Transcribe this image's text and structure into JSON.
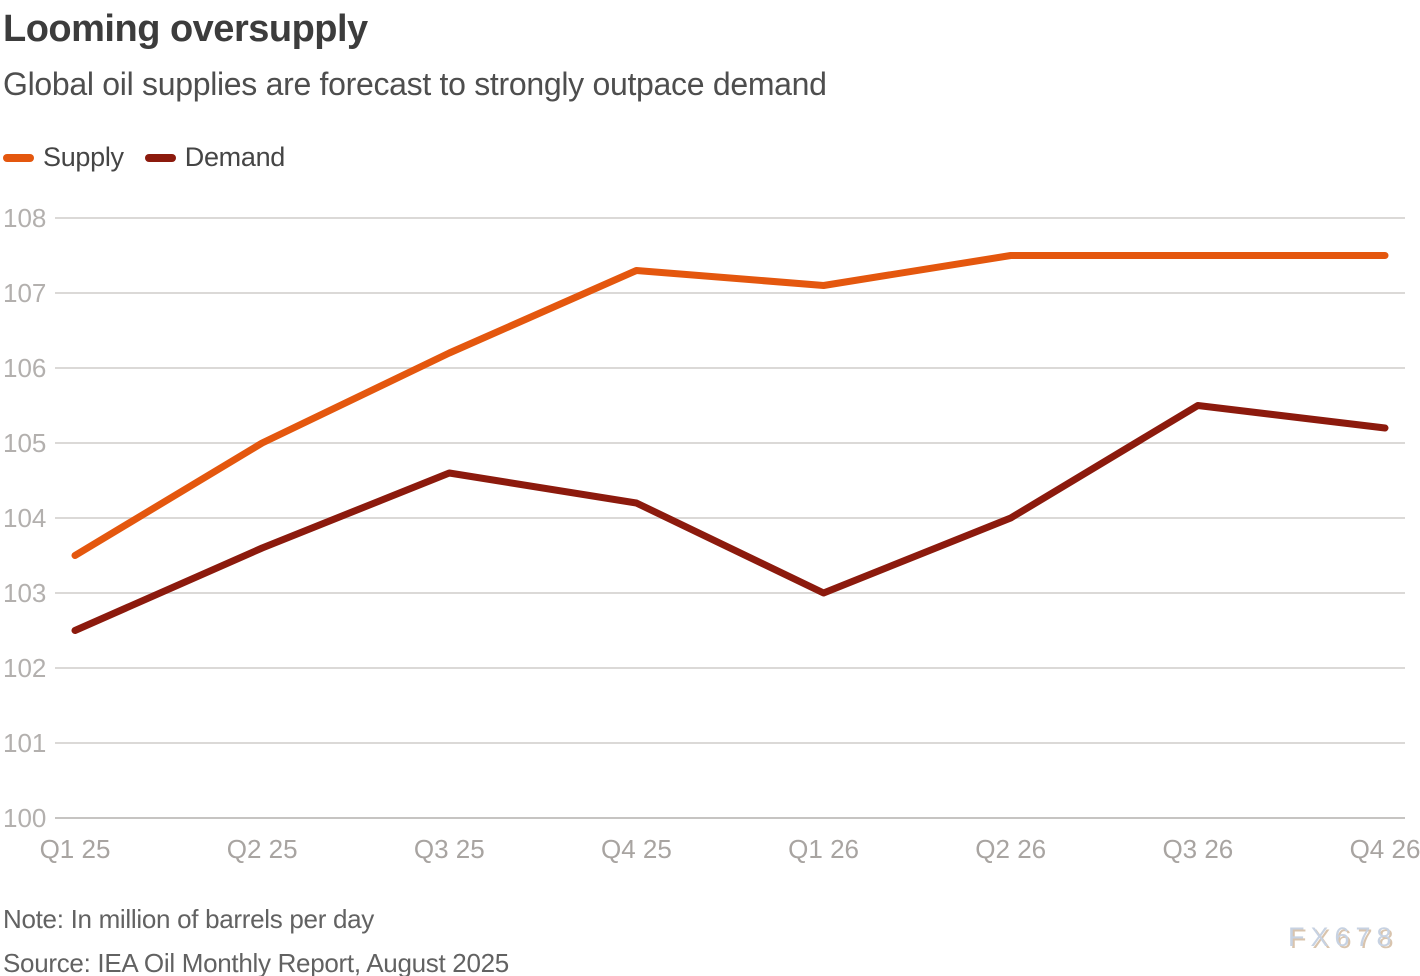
{
  "header": {
    "title": "Looming oversupply",
    "subtitle": "Global oil supplies are forecast to strongly outpace demand"
  },
  "legend": {
    "items": [
      {
        "label": "Supply",
        "color": "#e4570e"
      },
      {
        "label": "Demand",
        "color": "#8c1a0d"
      }
    ]
  },
  "footer": {
    "note": "Note: In million of barrels per day",
    "source": "Source: IEA Oil Monthly Report, August 2025",
    "watermark": "FX678"
  },
  "colors": {
    "supply": "#e4570e",
    "demand": "#8c1a0d",
    "gridline": "#dbd9d7",
    "axis_line": "#c6c4c2",
    "y_tick_label": "#b3b0ae",
    "x_tick_label": "#a8a4a1"
  },
  "chart_data": {
    "type": "line",
    "title": "Looming oversupply",
    "subtitle": "Global oil supplies are forecast to strongly outpace demand",
    "unit_note": "In million of barrels per day",
    "categories": [
      "Q1 25",
      "Q2 25",
      "Q3 25",
      "Q4 25",
      "Q1 26",
      "Q2 26",
      "Q3 26",
      "Q4 26"
    ],
    "series": [
      {
        "name": "Supply",
        "color": "#e4570e",
        "values": [
          103.5,
          105.0,
          106.2,
          107.3,
          107.1,
          107.5,
          107.5,
          107.5
        ]
      },
      {
        "name": "Demand",
        "color": "#8c1a0d",
        "values": [
          102.5,
          103.6,
          104.6,
          104.2,
          103.0,
          104.0,
          105.5,
          105.2
        ]
      }
    ],
    "xlabel": "",
    "ylabel": "",
    "ylim": [
      100,
      108
    ],
    "y_ticks": [
      100,
      101,
      102,
      103,
      104,
      105,
      106,
      107,
      108
    ],
    "grid": true,
    "legend_position": "top-left"
  }
}
